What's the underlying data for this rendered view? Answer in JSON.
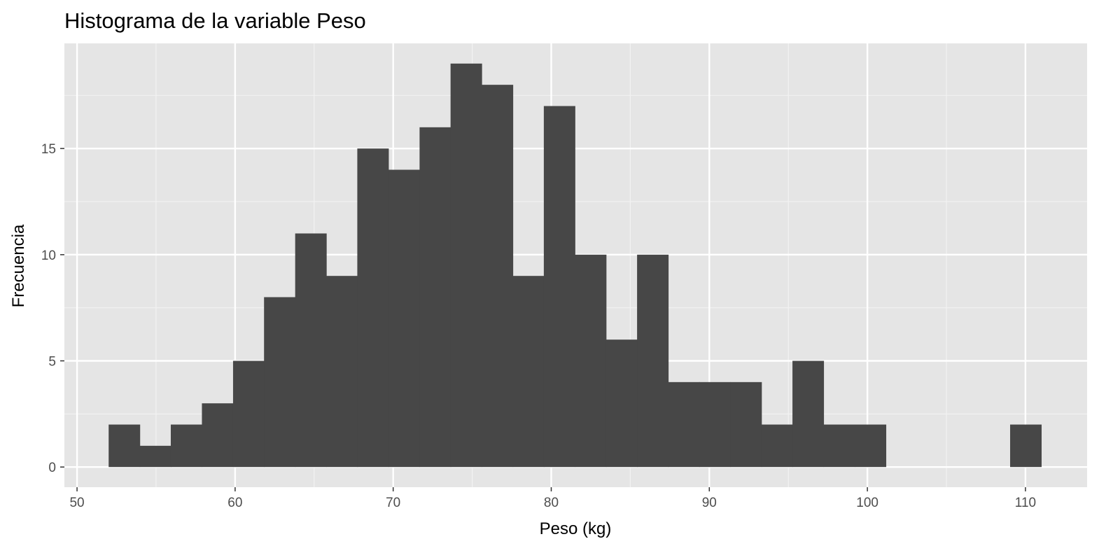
{
  "chart_data": {
    "type": "bar",
    "title": "Histograma de la variable Peso",
    "xlabel": "Peso (kg)",
    "ylabel": "Frecuencia",
    "xlim": [
      49.2,
      113.9
    ],
    "ylim": [
      -0.95,
      19.95
    ],
    "x_ticks": [
      50,
      60,
      70,
      80,
      90,
      100,
      110
    ],
    "x_tick_labels": [
      "50",
      "60",
      "70",
      "80",
      "90",
      "100",
      "110"
    ],
    "y_ticks": [
      0,
      5,
      10,
      15
    ],
    "y_tick_labels": [
      "0",
      "5",
      "10",
      "15"
    ],
    "grid": true,
    "bin_width": 1.966,
    "bin_starts": [
      52.0,
      53.97,
      55.93,
      57.9,
      59.87,
      61.83,
      63.8,
      65.77,
      67.73,
      69.7,
      71.67,
      73.63,
      75.6,
      77.57,
      79.53,
      81.5,
      83.47,
      85.43,
      87.4,
      89.36,
      91.33,
      93.3,
      95.26,
      97.23,
      99.2,
      101.16,
      103.13,
      105.1,
      107.06,
      109.03
    ],
    "values": [
      2,
      1,
      2,
      3,
      5,
      8,
      11,
      9,
      15,
      14,
      16,
      19,
      18,
      9,
      17,
      10,
      6,
      10,
      4,
      4,
      4,
      2,
      5,
      2,
      2,
      0,
      0,
      0,
      0,
      2
    ],
    "colors": {
      "bar": "#474747",
      "panel": "#e5e5e5",
      "grid_major": "#ffffff",
      "grid_minor": "#f2f2f2",
      "tick": "#333333"
    }
  }
}
